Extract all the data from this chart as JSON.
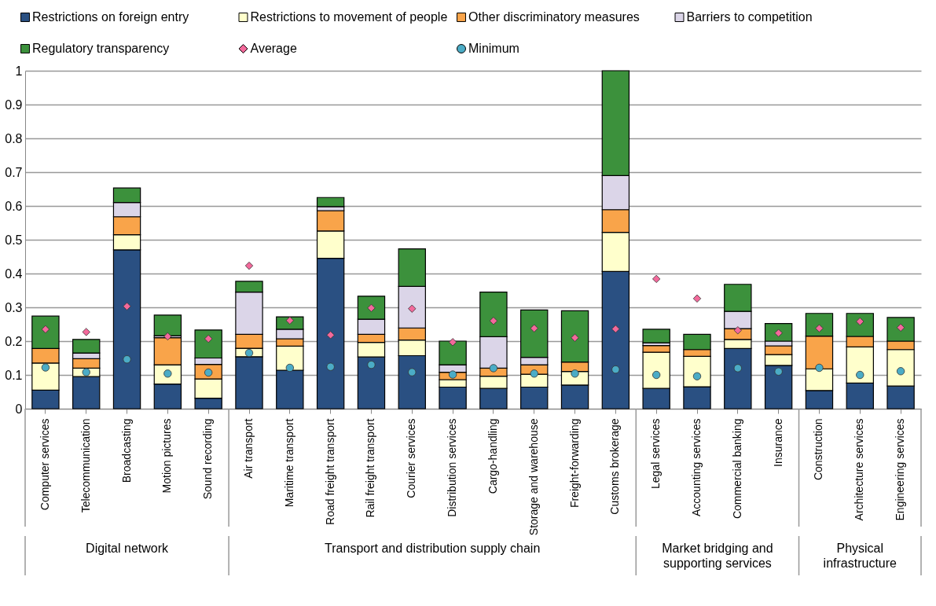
{
  "chart_data": {
    "type": "bar",
    "stacked": true,
    "categories": [
      "Computer services",
      "Telecommunication",
      "Broadcasting",
      "Motion pictures",
      "Sound recording",
      "Air transport",
      "Maritime transport",
      "Road freight transport",
      "Rail freight transport",
      "Courier services",
      "Distribution services",
      "Cargo-handling",
      "Storage and warehouse",
      "Freight-forwarding",
      "Customs brokerage",
      "Legal services",
      "Accounting services",
      "Commercial banking",
      "Insurance",
      "Construction",
      "Architecture services",
      "Engineering services"
    ],
    "series": [
      {
        "name": "Restrictions on foreign entry",
        "color": "#2a5082",
        "values": [
          0.055,
          0.095,
          0.47,
          0.073,
          0.031,
          0.154,
          0.114,
          0.445,
          0.153,
          0.157,
          0.064,
          0.06,
          0.064,
          0.07,
          0.406,
          0.06,
          0.065,
          0.178,
          0.128,
          0.054,
          0.076,
          0.067
        ]
      },
      {
        "name": "Restrictions to movement of people",
        "color": "#ffffcc",
        "values": [
          0.08,
          0.025,
          0.045,
          0.057,
          0.057,
          0.025,
          0.071,
          0.081,
          0.043,
          0.046,
          0.022,
          0.036,
          0.038,
          0.04,
          0.116,
          0.107,
          0.09,
          0.027,
          0.032,
          0.064,
          0.107,
          0.108
        ]
      },
      {
        "name": "Other discriminatory measures",
        "color": "#f9a44a",
        "values": [
          0.043,
          0.028,
          0.053,
          0.08,
          0.043,
          0.041,
          0.022,
          0.06,
          0.024,
          0.036,
          0.022,
          0.024,
          0.028,
          0.028,
          0.067,
          0.02,
          0.02,
          0.032,
          0.026,
          0.097,
          0.031,
          0.025
        ]
      },
      {
        "name": "Barriers to competition",
        "color": "#dbd5e8",
        "values": [
          0,
          0.017,
          0.042,
          0.006,
          0.019,
          0.125,
          0.028,
          0.012,
          0.045,
          0.123,
          0.022,
          0.093,
          0.022,
          0,
          0.101,
          0.008,
          0,
          0.051,
          0.014,
          0,
          0,
          0
        ]
      },
      {
        "name": "Regulatory transparency",
        "color": "#3c913c",
        "values": [
          0.096,
          0.04,
          0.043,
          0.061,
          0.083,
          0.032,
          0.037,
          0.027,
          0.068,
          0.111,
          0.07,
          0.132,
          0.14,
          0.152,
          0.31,
          0.04,
          0.045,
          0.08,
          0.052,
          0.067,
          0.068,
          0.07
        ]
      },
      {
        "name": "Average",
        "type": "scatter",
        "marker": "diamond",
        "color": "#f3699b",
        "values": [
          0.235,
          0.227,
          0.303,
          0.214,
          0.207,
          0.423,
          0.261,
          0.218,
          0.298,
          0.296,
          0.197,
          0.26,
          0.238,
          0.21,
          0.236,
          0.384,
          0.326,
          0.232,
          0.224,
          0.238,
          0.258,
          0.24
        ]
      },
      {
        "name": "Minimum",
        "type": "scatter",
        "marker": "circle",
        "color": "#4bacc6",
        "values": [
          0.122,
          0.108,
          0.146,
          0.104,
          0.107,
          0.165,
          0.121,
          0.124,
          0.13,
          0.108,
          0.101,
          0.12,
          0.104,
          0.104,
          0.116,
          0.1,
          0.096,
          0.12,
          0.11,
          0.121,
          0.1,
          0.111
        ]
      }
    ],
    "ylim": [
      0,
      1
    ],
    "yticks": [
      0,
      0.1,
      0.2,
      0.3,
      0.4,
      0.5,
      0.6,
      0.7,
      0.8,
      0.9,
      1
    ],
    "grid": "y",
    "legend": "top",
    "annotations": [
      "Digital network",
      "Transport and distribution supply chain",
      "Market bridging and supporting services",
      "Physical infrastructure"
    ]
  }
}
